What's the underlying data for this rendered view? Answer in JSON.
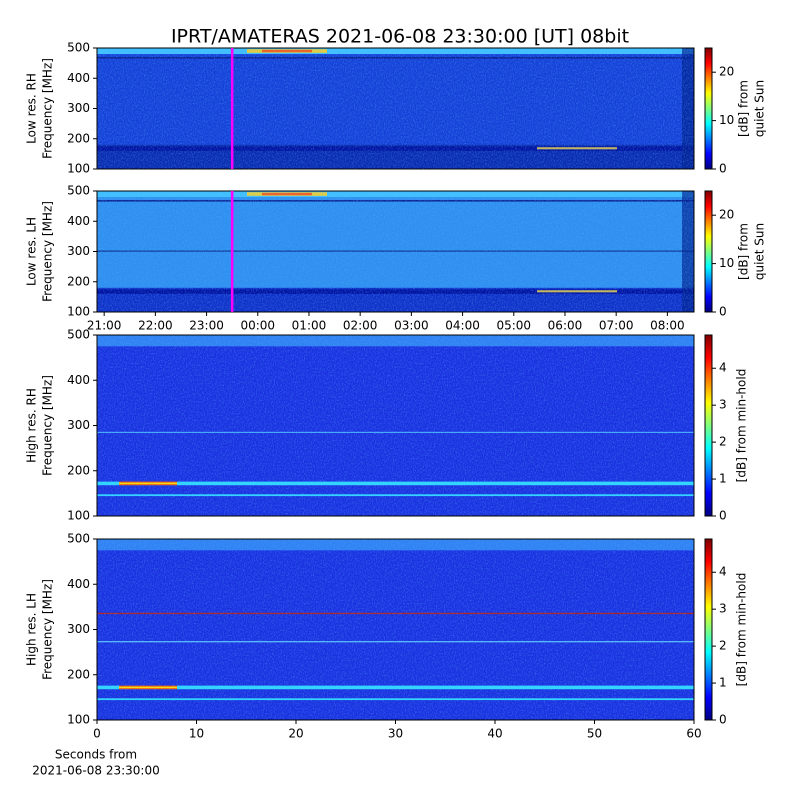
{
  "chart_data": [
    {
      "type": "heatmap",
      "title": "IPRT/AMATERAS 2021-06-08 23:30:00 [UT]   08bit",
      "ylabel": [
        "Low res. RH",
        "Frequency [MHz]"
      ],
      "ylim": [
        100,
        500
      ],
      "yticks": [
        100,
        200,
        300,
        400,
        500
      ],
      "xlim": [
        20.86,
        32.52
      ],
      "vline": 23.5,
      "vline_color": "#ff00ff",
      "colorbar": {
        "label": [
          "[dB] from",
          "quiet Sun"
        ],
        "lim": [
          0,
          25
        ],
        "ticks": [
          0,
          10,
          20
        ]
      }
    },
    {
      "type": "heatmap",
      "ylabel": [
        "Low res. LH",
        "Frequency [MHz]"
      ],
      "ylim": [
        100,
        500
      ],
      "yticks": [
        100,
        200,
        300,
        400,
        500
      ],
      "xlim": [
        20.86,
        32.52
      ],
      "xticks": [
        {
          "value": 21,
          "label": "21:00"
        },
        {
          "value": 22,
          "label": "22:00"
        },
        {
          "value": 23,
          "label": "23:00"
        },
        {
          "value": 24,
          "label": "00:00"
        },
        {
          "value": 25,
          "label": "01:00"
        },
        {
          "value": 26,
          "label": "02:00"
        },
        {
          "value": 27,
          "label": "03:00"
        },
        {
          "value": 28,
          "label": "04:00"
        },
        {
          "value": 29,
          "label": "05:00"
        },
        {
          "value": 30,
          "label": "06:00"
        },
        {
          "value": 31,
          "label": "07:00"
        },
        {
          "value": 32,
          "label": "08:00"
        }
      ],
      "vline": 23.5,
      "vline_color": "#ff00ff",
      "colorbar": {
        "label": [
          "[dB] from",
          "quiet Sun"
        ],
        "lim": [
          0,
          25
        ],
        "ticks": [
          0,
          10,
          20
        ]
      }
    },
    {
      "type": "heatmap",
      "ylabel": [
        "High res. RH",
        "Frequency [MHz]"
      ],
      "ylim": [
        100,
        500
      ],
      "yticks": [
        100,
        200,
        300,
        400,
        500
      ],
      "xlim": [
        0,
        60
      ],
      "colorbar": {
        "label": [
          "[dB] from min-hold"
        ],
        "lim": [
          0,
          4.9
        ],
        "ticks": [
          0,
          1,
          2,
          3,
          4
        ]
      }
    },
    {
      "type": "heatmap",
      "ylabel": [
        "High res. LH",
        "Frequency [MHz]"
      ],
      "ylim": [
        100,
        500
      ],
      "yticks": [
        100,
        200,
        300,
        400,
        500
      ],
      "xlim": [
        0,
        60
      ],
      "xticks": [
        0,
        10,
        20,
        30,
        40,
        50,
        60
      ],
      "xlabel": [
        "Seconds from",
        "2021-06-08 23:30:00"
      ],
      "colorbar": {
        "label": [
          "[dB] from min-hold"
        ],
        "lim": [
          0,
          4.9
        ],
        "ticks": [
          0,
          1,
          2,
          3,
          4
        ]
      }
    }
  ]
}
